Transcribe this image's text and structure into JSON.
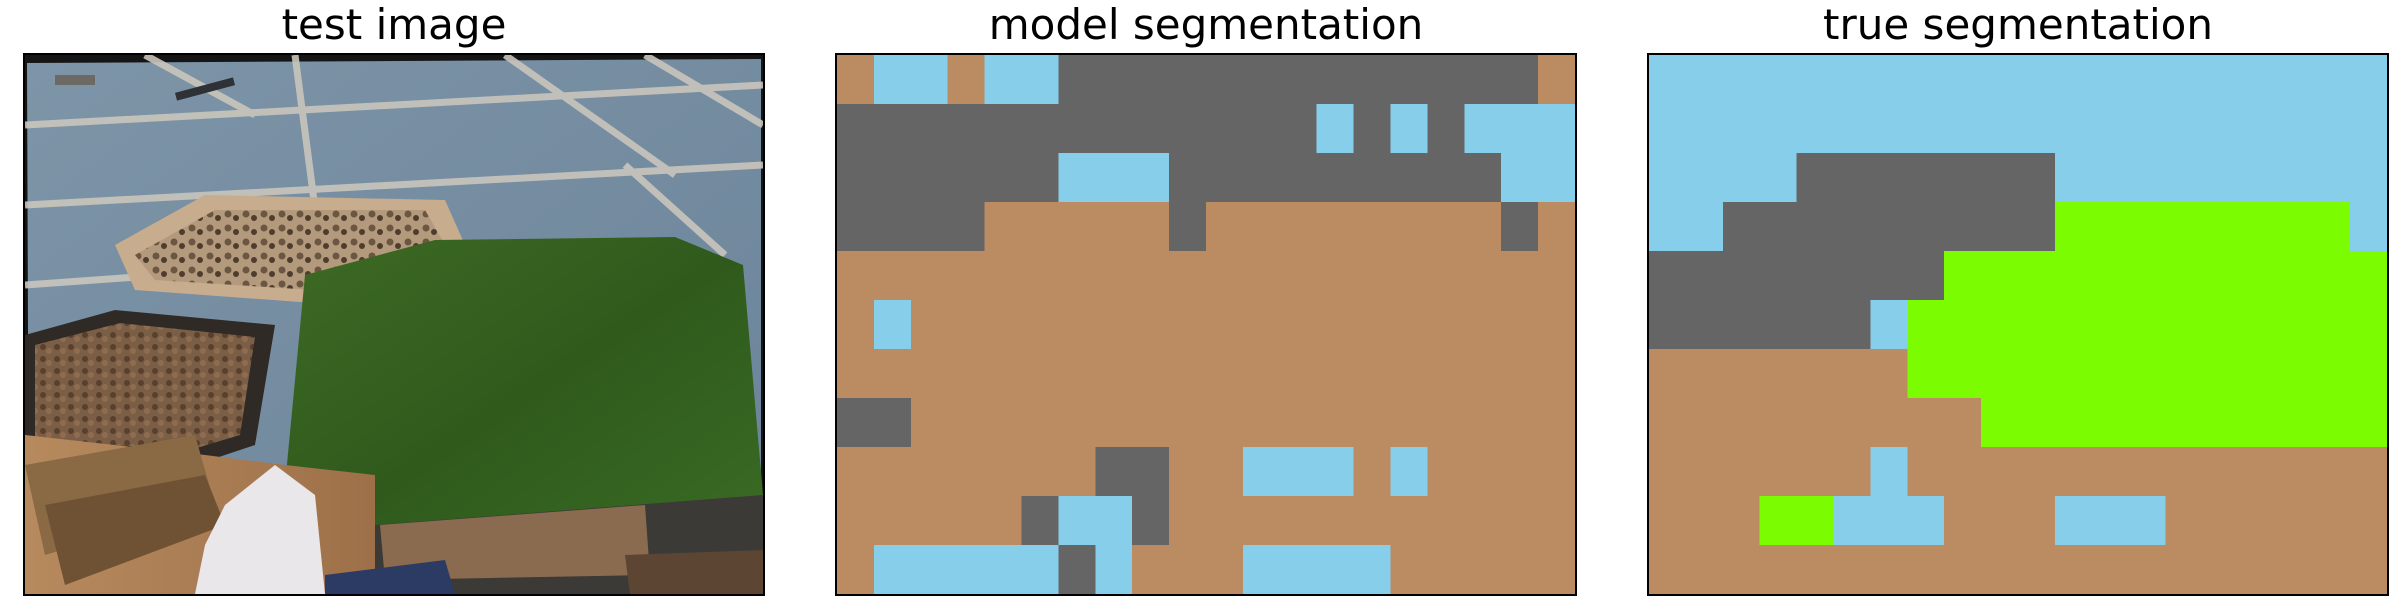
{
  "titles": {
    "test": "test image",
    "model": "model segmentation",
    "truth": "true segmentation"
  },
  "colors": {
    "sky": "#87ceeb",
    "rock": "#656565",
    "soil": "#bb8b62",
    "grass": "#7cfc00"
  },
  "grid": {
    "cols": 20,
    "rows": 11
  },
  "model_segmentation": [
    "SKKSKKRRRRRRRRRRRRRS",
    "RRRRRRRRRRRRRKRKRKKK",
    "RRRRRRKKKRRRRRRRRRKK",
    "RRRRSSSSSRSSSSSSSSRS",
    "SSSSSSSSSSSSSSSSSSSS",
    "SKSSSSSSSSSSSSSSSSSS",
    "SSSSSSSSSSSSSSSSSSSS",
    "RRSSSSSSSSSSSSSSSSSS",
    "SSSSSSSRRSSKKKSKSSSS",
    "SSSSSRKKRSSSSSSSSSSS",
    "SKKKKKRKSSSKKKKSSSSS"
  ],
  "true_segmentation": [
    "KKKKKKKKKKKKKKKKKKKK",
    "KKKKKKKKKKKKKKKKKKKK",
    "KKKKRRRRRRRKKKKKKKKK",
    "KKRRRRRRRRRGGGGGGGGK",
    "RRRRRRRRGGGGGGGGGGGG",
    "RRRRRRKGGGGGGGGGGGGG",
    "SSSSSSSGGGGGGGGGGGGG",
    "SSSSSSSSSGGGGGGGGGGG",
    "SSSSSSKSSSSSSSSSSSSS",
    "SSSGGKKKSSSKKKSSSSSS",
    "SSSSSSSSSSSSSSSSSSSS"
  ]
}
